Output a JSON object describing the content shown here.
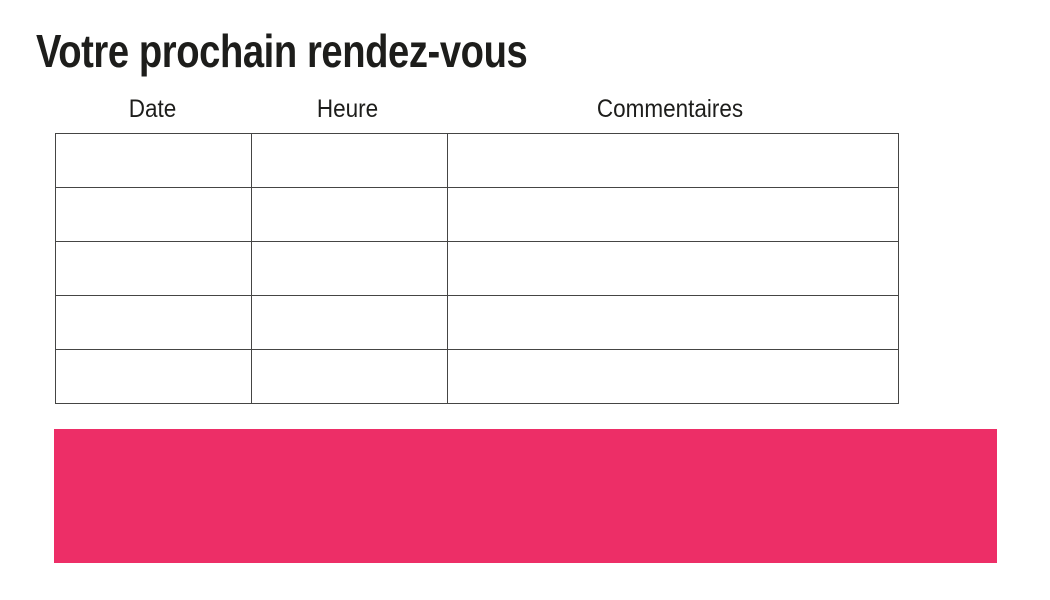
{
  "page": {
    "title": "Votre prochain rendez-vous"
  },
  "table": {
    "columns": [
      {
        "label": "Date"
      },
      {
        "label": "Heure"
      },
      {
        "label": "Commentaires"
      }
    ],
    "rows": [
      [
        "",
        "",
        ""
      ],
      [
        "",
        "",
        ""
      ],
      [
        "",
        "",
        ""
      ],
      [
        "",
        "",
        ""
      ],
      [
        "",
        "",
        ""
      ]
    ]
  },
  "colors": {
    "accent_pink": "#ED2E67",
    "text": "#1D1D1B",
    "table_border": "#454544"
  }
}
